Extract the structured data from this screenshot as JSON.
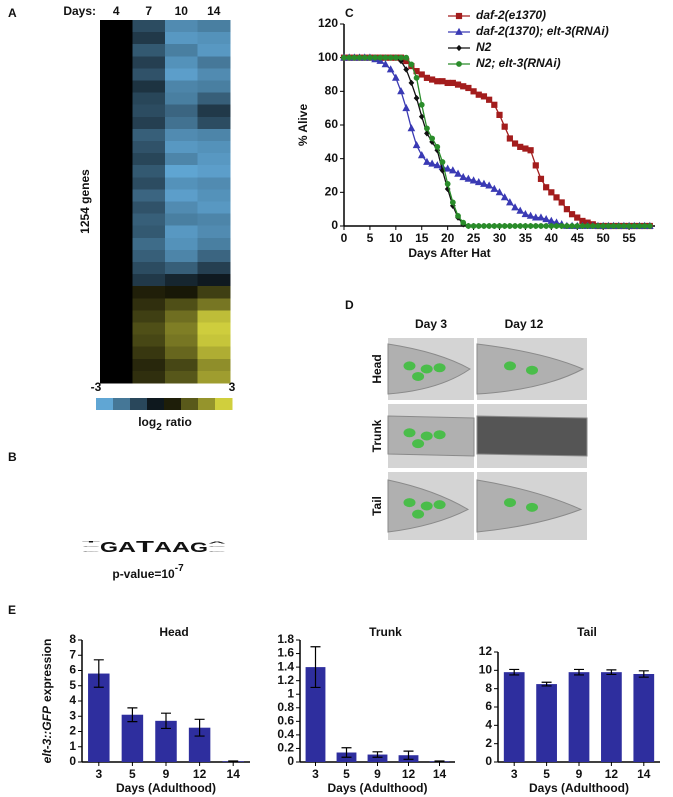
{
  "panel_labels": [
    "A",
    "B",
    "C",
    "D",
    "E"
  ],
  "chart_data": [
    {
      "type": "heatmap",
      "columns_title": "Days:",
      "columns": [
        "4",
        "7",
        "10",
        "14"
      ],
      "row_label": "1254 genes",
      "values": [
        [
          0,
          -1.2,
          -2.2,
          -2.0
        ],
        [
          0,
          -0.9,
          -2.4,
          -2.3
        ],
        [
          0,
          -1.4,
          -2.0,
          -2.4
        ],
        [
          0,
          -1.0,
          -2.3,
          -1.9
        ],
        [
          0,
          -1.3,
          -2.5,
          -2.2
        ],
        [
          0,
          -0.8,
          -2.1,
          -2.0
        ],
        [
          0,
          -1.1,
          -2.0,
          -1.5
        ],
        [
          0,
          -1.2,
          -1.6,
          -0.9
        ],
        [
          0,
          -1.0,
          -1.8,
          -1.2
        ],
        [
          0,
          -1.5,
          -2.2,
          -2.1
        ],
        [
          0,
          -1.3,
          -2.4,
          -2.3
        ],
        [
          0,
          -1.1,
          -2.1,
          -2.4
        ],
        [
          0,
          -1.4,
          -2.6,
          -2.5
        ],
        [
          0,
          -1.2,
          -2.3,
          -2.2
        ],
        [
          0,
          -1.6,
          -2.5,
          -2.3
        ],
        [
          0,
          -1.3,
          -2.2,
          -2.4
        ],
        [
          0,
          -1.5,
          -2.0,
          -2.1
        ],
        [
          0,
          -1.4,
          -2.4,
          -2.2
        ],
        [
          0,
          -1.7,
          -2.3,
          -2.0
        ],
        [
          0,
          -1.5,
          -2.1,
          -1.6
        ],
        [
          0,
          -1.2,
          -1.5,
          -1.0
        ],
        [
          0,
          -0.9,
          -0.6,
          -0.4
        ],
        [
          0,
          0.4,
          0.3,
          0.8
        ],
        [
          0,
          0.6,
          1.0,
          1.5
        ],
        [
          0,
          0.8,
          1.4,
          2.4
        ],
        [
          0,
          1.0,
          1.6,
          2.6
        ],
        [
          0,
          0.9,
          1.5,
          2.5
        ],
        [
          0,
          0.7,
          1.3,
          2.2
        ],
        [
          0,
          0.5,
          0.9,
          1.8
        ],
        [
          0,
          0.6,
          1.1,
          2.0
        ]
      ],
      "colorbar": {
        "lim": [
          -3,
          3
        ],
        "ticks": [
          -3,
          3
        ],
        "label": [
          "log",
          "2",
          "ratio"
        ]
      }
    },
    {
      "type": "line",
      "xlabel": "Days After Hat",
      "ylabel": "% Alive",
      "legend": "upper right",
      "grid": false,
      "xlim": [
        0,
        60
      ],
      "xticks": [
        0,
        5,
        10,
        15,
        20,
        25,
        30,
        35,
        40,
        45,
        50,
        55
      ],
      "ylim": [
        0,
        120
      ],
      "yticks": [
        0,
        20,
        40,
        60,
        80,
        100,
        120
      ],
      "x": [
        0,
        1,
        2,
        3,
        4,
        5,
        6,
        7,
        8,
        9,
        10,
        11,
        12,
        13,
        14,
        15,
        16,
        17,
        18,
        19,
        20,
        21,
        22,
        23,
        24,
        25,
        26,
        27,
        28,
        29,
        30,
        31,
        32,
        33,
        34,
        35,
        36,
        37,
        38,
        39,
        40,
        41,
        42,
        43,
        44,
        45,
        46,
        47,
        48,
        49,
        50,
        51,
        52,
        53,
        54,
        55,
        56,
        57,
        58,
        59
      ],
      "series": [
        {
          "name": "daf-2(e1370)",
          "color": "#a31d1d",
          "marker": "square",
          "values": [
            100,
            100,
            100,
            100,
            100,
            100,
            100,
            100,
            100,
            100,
            100,
            100,
            98,
            95,
            92,
            90,
            88,
            87,
            86,
            86,
            85,
            85,
            84,
            83,
            82,
            80,
            78,
            77,
            75,
            72,
            66,
            59,
            52,
            49,
            47,
            46,
            45,
            36,
            28,
            23,
            20,
            17,
            14,
            10,
            7,
            5,
            3,
            2,
            1,
            0,
            0,
            0,
            0,
            0,
            0,
            0,
            0,
            0,
            0,
            0
          ]
        },
        {
          "name": "daf-2(1370); elt-3(RNAi)",
          "color": "#3a3ab4",
          "marker": "triangle",
          "values": [
            100,
            100,
            100,
            100,
            100,
            100,
            99,
            98,
            96,
            93,
            88,
            80,
            70,
            58,
            48,
            42,
            38,
            37,
            36,
            35,
            34,
            33,
            31,
            29,
            28,
            27,
            26,
            25,
            24,
            22,
            20,
            17,
            14,
            11,
            9,
            7,
            6,
            5,
            5,
            4,
            3,
            2,
            1,
            0,
            0,
            0,
            0,
            0,
            0,
            0,
            0,
            0,
            0,
            0,
            0,
            0,
            0,
            0,
            0,
            0
          ]
        },
        {
          "name": "N2",
          "color": "#111111",
          "marker": "diamond",
          "values": [
            100,
            100,
            100,
            100,
            100,
            100,
            100,
            100,
            100,
            100,
            100,
            98,
            93,
            85,
            76,
            65,
            55,
            50,
            45,
            33,
            22,
            12,
            5,
            1,
            0,
            0,
            0,
            0,
            0,
            0,
            0,
            0,
            0,
            0,
            0,
            0,
            0,
            0,
            0,
            0,
            0,
            0,
            0,
            0,
            0,
            0,
            0,
            0,
            0,
            0,
            0,
            0,
            0,
            0,
            0,
            0,
            0,
            0,
            0,
            0
          ]
        },
        {
          "name": "N2; elt-3(RNAi)",
          "color": "#2a8c2a",
          "marker": "circle",
          "values": [
            100,
            100,
            100,
            100,
            100,
            100,
            100,
            100,
            100,
            100,
            100,
            100,
            100,
            96,
            88,
            72,
            58,
            52,
            47,
            38,
            25,
            14,
            6,
            2,
            0,
            0,
            0,
            0,
            0,
            0,
            0,
            0,
            0,
            0,
            0,
            0,
            0,
            0,
            0,
            0,
            0,
            0,
            0,
            0,
            0,
            0,
            0,
            0,
            0,
            0,
            0,
            0,
            0,
            0,
            0,
            0,
            0,
            0,
            0,
            0
          ]
        }
      ]
    },
    {
      "type": "bar",
      "title": "Head",
      "ylabel": [
        "elt-3::GFP",
        "expression"
      ],
      "xlabel": "Days (Adulthood)",
      "color": "#2e2e9e",
      "categories": [
        "3",
        "5",
        "9",
        "12",
        "14"
      ],
      "values": [
        5.8,
        3.1,
        2.7,
        2.25,
        0.05
      ],
      "errors": [
        0.9,
        0.45,
        0.5,
        0.55,
        0.02
      ],
      "ylim": [
        0,
        8
      ],
      "yticks": [
        0,
        1,
        2,
        3,
        4,
        5,
        6,
        7,
        8
      ]
    },
    {
      "type": "bar",
      "title": "Trunk",
      "xlabel": "Days (Adulthood)",
      "color": "#2e2e9e",
      "categories": [
        "3",
        "5",
        "9",
        "12",
        "14"
      ],
      "values": [
        1.4,
        0.14,
        0.11,
        0.1,
        0.01
      ],
      "errors": [
        0.3,
        0.07,
        0.04,
        0.06,
        0.005
      ],
      "ylim": [
        0,
        1.8
      ],
      "yticks": [
        0,
        0.2,
        0.4,
        0.6,
        0.8,
        1,
        1.2,
        1.4,
        1.6,
        1.8
      ]
    },
    {
      "type": "bar",
      "title": "Tail",
      "xlabel": "Days (Adulthood)",
      "color": "#2e2e9e",
      "categories": [
        "3",
        "5",
        "9",
        "12",
        "14"
      ],
      "values": [
        9.8,
        8.5,
        9.8,
        9.8,
        9.6
      ],
      "errors": [
        0.3,
        0.2,
        0.3,
        0.25,
        0.35
      ],
      "ylim": [
        0,
        12
      ],
      "yticks": [
        0,
        2,
        4,
        6,
        8,
        10,
        12
      ]
    }
  ],
  "motif": {
    "positions": [
      [
        {
          "letter": "G",
          "bits": 0.1
        },
        {
          "letter": "C",
          "bits": 0.1
        },
        {
          "letter": "T",
          "bits": 0.25
        }
      ],
      [
        {
          "letter": "G",
          "bits": 1.9
        }
      ],
      [
        {
          "letter": "A",
          "bits": 1.9
        }
      ],
      [
        {
          "letter": "T",
          "bits": 2.0
        }
      ],
      [
        {
          "letter": "A",
          "bits": 1.85
        }
      ],
      [
        {
          "letter": "A",
          "bits": 1.85
        }
      ],
      [
        {
          "letter": "G",
          "bits": 1.75
        }
      ],
      [
        {
          "letter": "G",
          "bits": 0.1
        },
        {
          "letter": "C",
          "bits": 0.08
        },
        {
          "letter": "A",
          "bits": 0.3
        }
      ]
    ],
    "p_value": "p-value=10",
    "p_exponent": "-7"
  },
  "images": {
    "columns": [
      "Day 3",
      "Day 12"
    ],
    "rows": [
      "Head",
      "Trunk",
      "Tail"
    ]
  }
}
